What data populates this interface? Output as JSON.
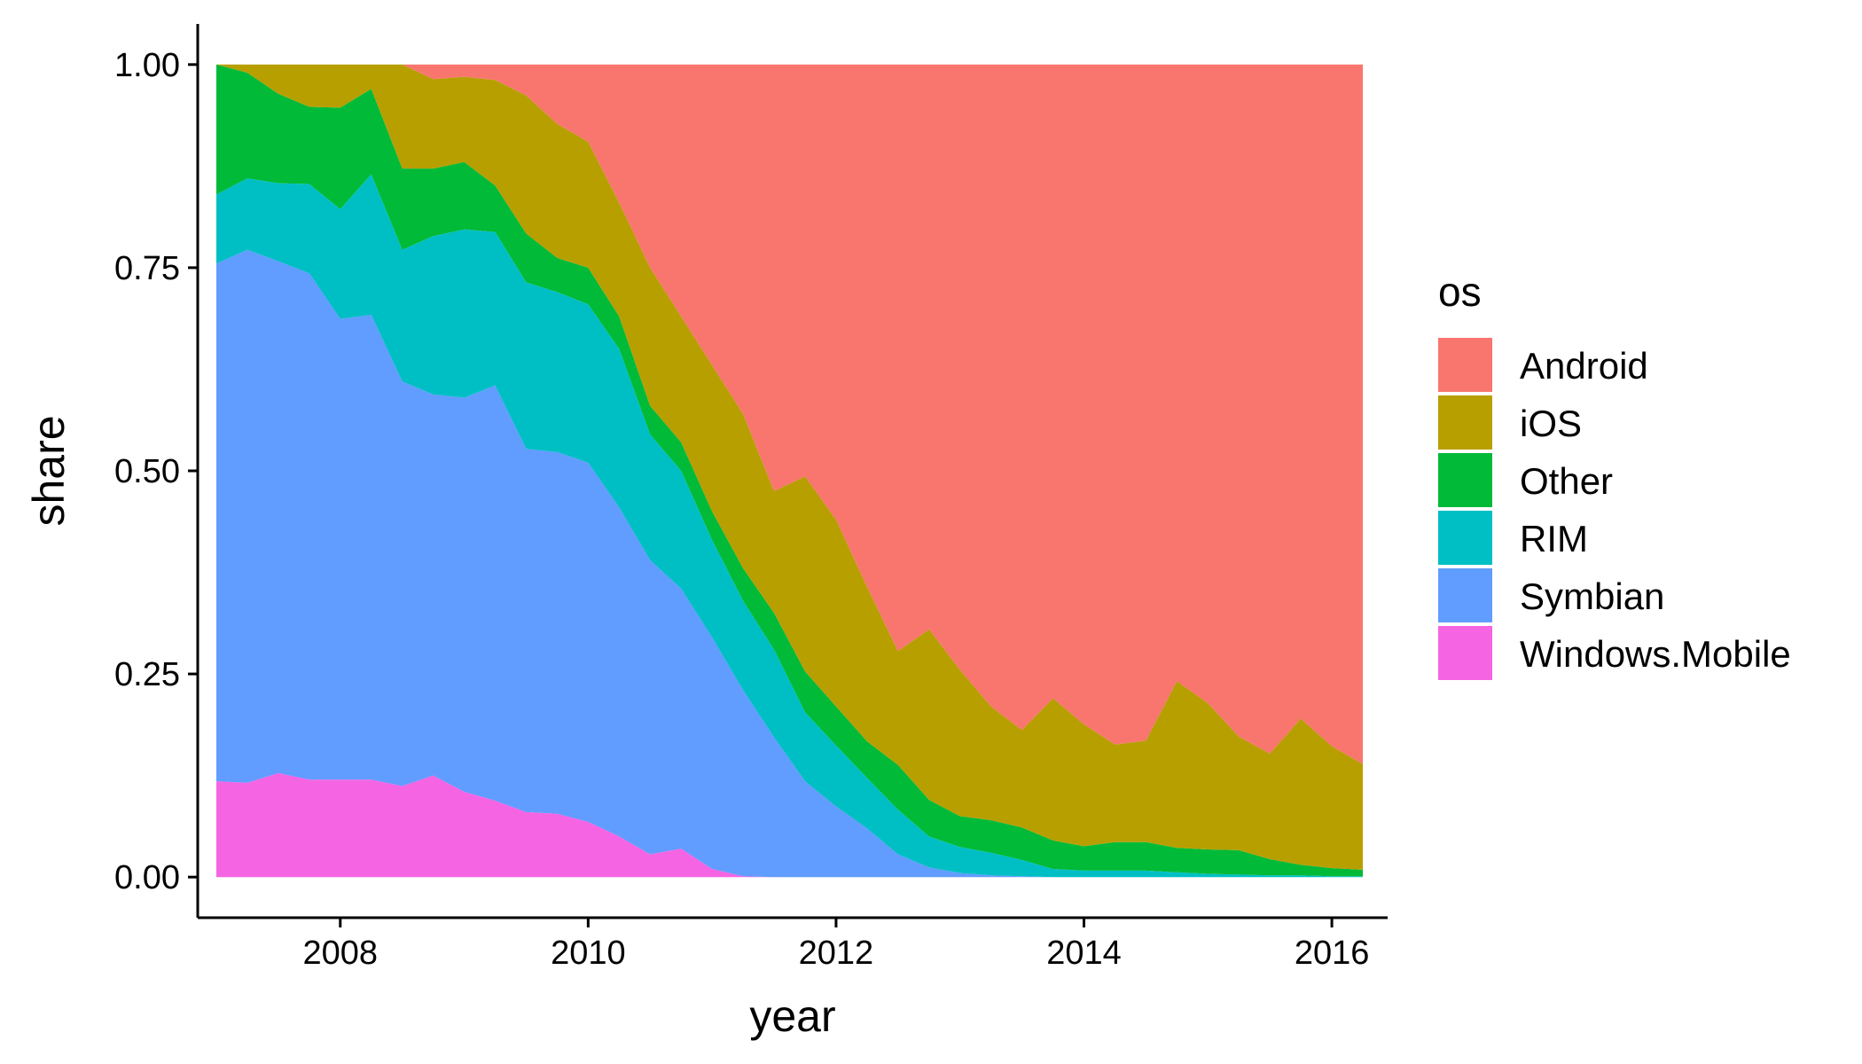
{
  "chart_data": {
    "type": "area",
    "stacked": "fill",
    "xlabel": "year",
    "ylabel": "share",
    "xlim": [
      2006.85,
      2016.45
    ],
    "ylim": [
      -0.05,
      1.05
    ],
    "x_ticks": [
      2008,
      2010,
      2012,
      2014,
      2016
    ],
    "y_ticks": [
      0,
      0.25,
      0.5,
      0.75,
      1
    ],
    "y_tick_labels": [
      "0.00",
      "0.25",
      "0.50",
      "0.75",
      "1.00"
    ],
    "grid": false,
    "legend": {
      "title": "os",
      "position": "right"
    },
    "x": [
      2007.0,
      2007.25,
      2007.5,
      2007.75,
      2008.0,
      2008.25,
      2008.5,
      2008.75,
      2009.0,
      2009.25,
      2009.5,
      2009.75,
      2010.0,
      2010.25,
      2010.5,
      2010.75,
      2011.0,
      2011.25,
      2011.5,
      2011.75,
      2012.0,
      2012.25,
      2012.5,
      2012.75,
      2013.0,
      2013.25,
      2013.5,
      2013.75,
      2014.0,
      2014.25,
      2014.5,
      2014.75,
      2015.0,
      2015.25,
      2015.5,
      2015.75,
      2016.0,
      2016.25
    ],
    "series": [
      {
        "name": "Windows.Mobile",
        "color": "#F564E3",
        "values": [
          0.118,
          0.116,
          0.128,
          0.12,
          0.12,
          0.12,
          0.112,
          0.125,
          0.105,
          0.094,
          0.08,
          0.078,
          0.068,
          0.05,
          0.028,
          0.035,
          0.01,
          0.001,
          0,
          0,
          0,
          0,
          0,
          0,
          0,
          0,
          0,
          0,
          0,
          0,
          0,
          0,
          0,
          0,
          0,
          0,
          0,
          0
        ]
      },
      {
        "name": "Symbian",
        "color": "#619CFF",
        "values": [
          0.637,
          0.656,
          0.63,
          0.623,
          0.567,
          0.572,
          0.498,
          0.469,
          0.485,
          0.511,
          0.447,
          0.445,
          0.442,
          0.405,
          0.362,
          0.32,
          0.285,
          0.229,
          0.172,
          0.118,
          0.087,
          0.06,
          0.028,
          0.012,
          0.005,
          0.002,
          0.001,
          0,
          0,
          0,
          0,
          0,
          0,
          0,
          0,
          0,
          0,
          0
        ]
      },
      {
        "name": "RIM",
        "color": "#00BFC4",
        "values": [
          0.085,
          0.088,
          0.096,
          0.11,
          0.135,
          0.173,
          0.162,
          0.195,
          0.207,
          0.189,
          0.205,
          0.197,
          0.195,
          0.195,
          0.155,
          0.145,
          0.12,
          0.11,
          0.108,
          0.085,
          0.075,
          0.062,
          0.055,
          0.038,
          0.032,
          0.028,
          0.02,
          0.01,
          0.008,
          0.008,
          0.008,
          0.006,
          0.004,
          0.003,
          0.002,
          0.002,
          0.001,
          0.001
        ]
      },
      {
        "name": "Other",
        "color": "#00BA38",
        "values": [
          0.16,
          0.13,
          0.11,
          0.095,
          0.125,
          0.105,
          0.1,
          0.083,
          0.083,
          0.057,
          0.06,
          0.042,
          0.045,
          0.04,
          0.035,
          0.035,
          0.035,
          0.04,
          0.045,
          0.05,
          0.048,
          0.045,
          0.055,
          0.045,
          0.038,
          0.04,
          0.04,
          0.035,
          0.03,
          0.035,
          0.035,
          0.03,
          0.03,
          0.03,
          0.02,
          0.013,
          0.01,
          0.008
        ]
      },
      {
        "name": "iOS",
        "color": "#B79F00",
        "values": [
          0,
          0.01,
          0.036,
          0.052,
          0.053,
          0.03,
          0.128,
          0.11,
          0.105,
          0.13,
          0.17,
          0.165,
          0.155,
          0.14,
          0.17,
          0.155,
          0.18,
          0.19,
          0.15,
          0.24,
          0.23,
          0.19,
          0.14,
          0.21,
          0.18,
          0.14,
          0.12,
          0.175,
          0.15,
          0.12,
          0.125,
          0.205,
          0.18,
          0.14,
          0.13,
          0.18,
          0.15,
          0.13
        ]
      },
      {
        "name": "Android",
        "color": "#F8766D",
        "values": [
          0,
          0,
          0,
          0,
          0,
          0,
          0,
          0.018,
          0.015,
          0.019,
          0.038,
          0.073,
          0.095,
          0.17,
          0.25,
          0.31,
          0.37,
          0.43,
          0.525,
          0.507,
          0.56,
          0.643,
          0.722,
          0.695,
          0.745,
          0.79,
          0.819,
          0.78,
          0.812,
          0.837,
          0.832,
          0.759,
          0.786,
          0.827,
          0.848,
          0.805,
          0.839,
          0.861
        ]
      }
    ],
    "legend_order": [
      "Android",
      "iOS",
      "Other",
      "RIM",
      "Symbian",
      "Windows.Mobile"
    ]
  }
}
